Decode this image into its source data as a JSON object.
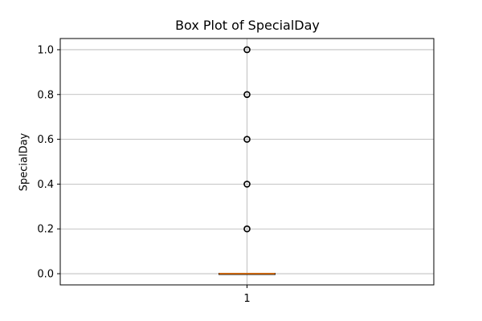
{
  "chart_data": {
    "type": "box",
    "title": "Box Plot of SpecialDay",
    "xlabel": "",
    "ylabel": "SpecialDay",
    "categories": [
      "1"
    ],
    "boxes": [
      {
        "category": "1",
        "min": 0.0,
        "q1": 0.0,
        "median": 0.0,
        "q3": 0.0,
        "max": 0.0,
        "outliers": [
          0.2,
          0.4,
          0.6,
          0.8,
          1.0
        ]
      }
    ],
    "ylim": [
      -0.05,
      1.05
    ],
    "yticks": [
      0.0,
      0.2,
      0.4,
      0.6,
      0.8,
      1.0
    ],
    "ytick_labels": [
      "0.0",
      "0.2",
      "0.4",
      "0.6",
      "0.8",
      "1.0"
    ],
    "grid": true,
    "colors": {
      "median": "#ff7f0e",
      "box": "#000000",
      "grid": "#b0b0b0",
      "outlier": "#000000"
    }
  }
}
